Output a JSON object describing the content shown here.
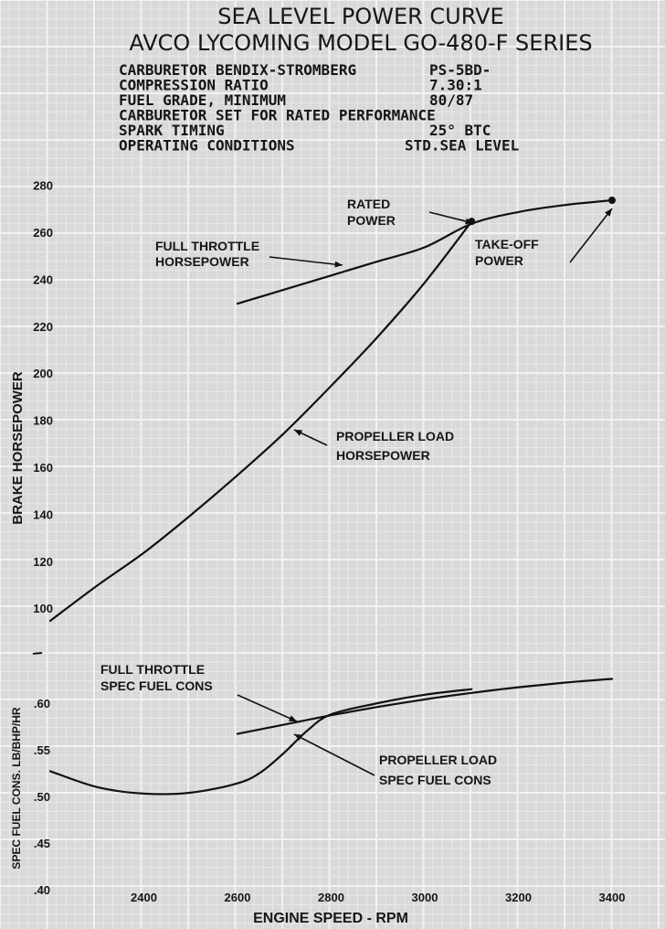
{
  "header": {
    "title_line1": "SEA LEVEL POWER CURVE",
    "title_line2": "AVCO LYCOMING MODEL GO-480-F SERIES",
    "specs": [
      {
        "label": "CARBURETOR  BENDIX-STROMBERG",
        "value": "PS-5BD-"
      },
      {
        "label": "COMPRESSION  RATIO",
        "value": "7.30:1"
      },
      {
        "label": "FUEL GRADE, MINIMUM",
        "value": "80/87"
      },
      {
        "label": "CARBURETOR  SET  FOR  RATED  PERFORMANCE",
        "value": ""
      },
      {
        "label": "SPARK  TIMING",
        "value": "25° BTC"
      },
      {
        "label": "OPERATING  CONDITIONS",
        "value": "STD.SEA  LEVEL"
      }
    ]
  },
  "chart_data": [
    {
      "type": "line",
      "title": "SEA LEVEL POWER CURVE",
      "xlabel": "ENGINE  SPEED - RPM",
      "ylabel": "BRAKE  HORSEPOWER",
      "xlim": [
        2200,
        3500
      ],
      "ylim": [
        90,
        280
      ],
      "y_ticks": [
        "100",
        "120",
        "140",
        "160",
        "180",
        "200",
        "220",
        "240",
        "260",
        "280"
      ],
      "y_tick_values": [
        100,
        120,
        140,
        160,
        180,
        200,
        220,
        240,
        260,
        280
      ],
      "grid": true,
      "series": [
        {
          "name": "FULL THROTTLE HORSEPOWER",
          "x": [
            2600,
            2700,
            2800,
            2900,
            3000,
            3100,
            3200,
            3300,
            3400
          ],
          "y": [
            230,
            236,
            242,
            248,
            254,
            264,
            269,
            272,
            274
          ]
        },
        {
          "name": "PROPELLER LOAD HORSEPOWER",
          "x": [
            2200,
            2300,
            2400,
            2500,
            2600,
            2700,
            2800,
            2900,
            3000,
            3100
          ],
          "y": [
            95,
            110,
            124,
            140,
            157,
            175,
            195,
            216,
            239,
            265
          ]
        }
      ],
      "annotations": [
        {
          "text_lines": [
            "RATED",
            "POWER"
          ],
          "x": 3100,
          "y": 265
        },
        {
          "text_lines": [
            "TAKE-OFF",
            "POWER"
          ],
          "x": 3400,
          "y": 274
        },
        {
          "text_lines": [
            "FULL THROTTLE",
            "HORSEPOWER"
          ],
          "x": 2800,
          "y": 244
        },
        {
          "text_lines": [
            "PROPELLER LOAD",
            "HORSEPOWER"
          ],
          "x": 2730,
          "y": 177
        }
      ]
    },
    {
      "type": "line",
      "xlabel": "ENGINE  SPEED - RPM",
      "ylabel": "SPEC FUEL CONS.  LB/BHP/HR",
      "xlim": [
        2200,
        3500
      ],
      "ylim": [
        0.38,
        0.66
      ],
      "x_ticks": [
        "2400",
        "2600",
        "2800",
        "3000",
        "3200",
        "3400"
      ],
      "x_tick_values": [
        2400,
        2600,
        2800,
        3000,
        3200,
        3400
      ],
      "y_ticks": [
        ".40",
        ".45",
        ".50",
        ".55",
        ".60"
      ],
      "y_tick_values": [
        0.4,
        0.45,
        0.5,
        0.55,
        0.6
      ],
      "grid": true,
      "series": [
        {
          "name": "FULL THROTTLE SPEC FUEL CONS",
          "x": [
            2600,
            2700,
            2800,
            2900,
            3000,
            3100,
            3200,
            3300,
            3400
          ],
          "y": [
            0.568,
            0.578,
            0.588,
            0.597,
            0.605,
            0.612,
            0.618,
            0.623,
            0.627
          ]
        },
        {
          "name": "PROPELLER LOAD SPEC FUEL CONS",
          "x": [
            2200,
            2300,
            2400,
            2500,
            2600,
            2650,
            2700,
            2750,
            2800,
            2900,
            3000,
            3100
          ],
          "y": [
            0.528,
            0.511,
            0.504,
            0.505,
            0.515,
            0.527,
            0.548,
            0.572,
            0.589,
            0.601,
            0.61,
            0.616
          ]
        }
      ],
      "annotations": [
        {
          "text_lines": [
            "FULL THROTTLE",
            "SPEC FUEL CONS"
          ],
          "x": 2710,
          "y": 0.578
        },
        {
          "text_lines": [
            "PROPELLER LOAD",
            "SPEC FUEL CONS"
          ],
          "x": 2730,
          "y": 0.565
        }
      ]
    }
  ]
}
